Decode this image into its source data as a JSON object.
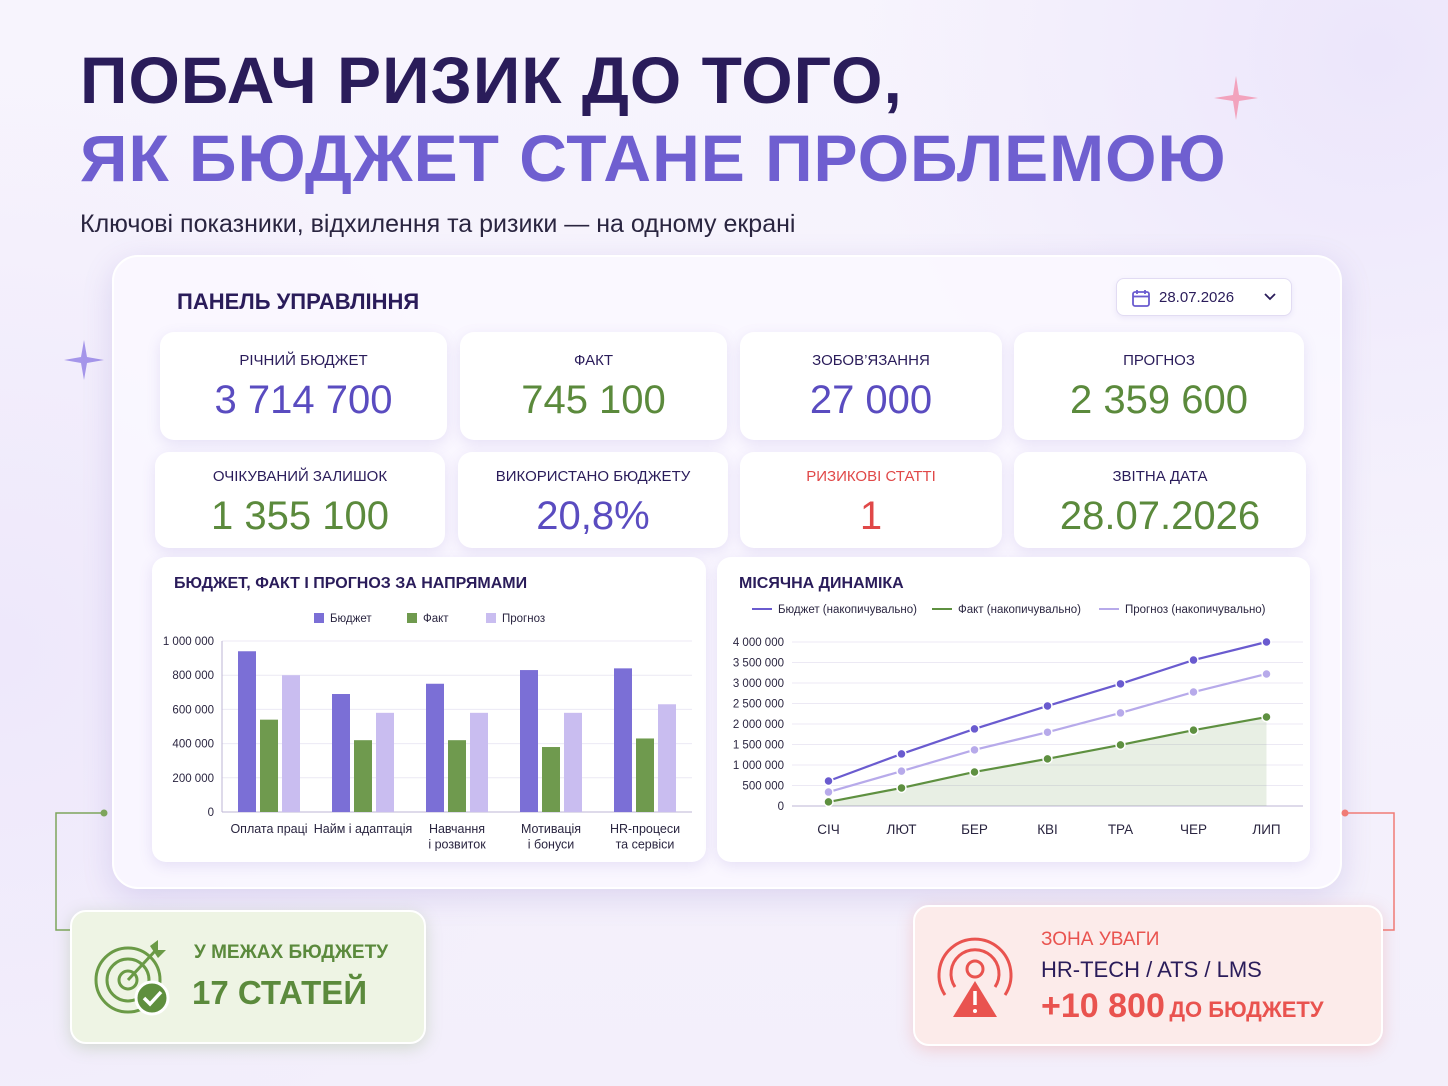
{
  "header": {
    "title_line1": "ПОБАЧ РИЗИК ДО ТОГО,",
    "title_line2": "ЯК БЮДЖЕТ СТАНЕ ПРОБЛЕМОЮ",
    "subtitle": "Ключові показники, відхилення та ризики — на одному екрані"
  },
  "panel": {
    "title": "ПАНЕЛЬ УПРАВЛІННЯ",
    "date": "28.07.2026"
  },
  "kpis": [
    {
      "label": "РІЧНИЙ БЮДЖЕТ",
      "value": "3 714 700",
      "color": "#5a4cc0"
    },
    {
      "label": "ФАКТ",
      "value": "745 100",
      "color": "#5b8a3c"
    },
    {
      "label": "ЗОБОВ’ЯЗАННЯ",
      "value": "27 000",
      "color": "#5a4cc0"
    },
    {
      "label": "ПРОГНОЗ",
      "value": "2 359 600",
      "color": "#5b8a3c"
    },
    {
      "label": "ОЧІКУВАНИЙ ЗАЛИШОК",
      "value": "1 355 100",
      "color": "#5b8a3c"
    },
    {
      "label": "ВИКОРИСТАНО БЮДЖЕТУ",
      "value": "20,8%",
      "color": "#5a4cc0"
    },
    {
      "label": "РИЗИКОВІ СТАТТІ",
      "value": "1",
      "color": "#e04848"
    },
    {
      "label": "ЗВІТНА ДАТА",
      "value": "28.07.2026",
      "color": "#5b8a3c"
    }
  ],
  "chart_data": [
    {
      "type": "bar",
      "title": "БЮДЖЕТ, ФАКТ І ПРОГНОЗ ЗА НАПРЯМАМИ",
      "categories": [
        "Оплата праці",
        "Найм і адаптація",
        "Навчання\nі розвиток",
        "Мотивація\nі бонуси",
        "HR-процеси\nта сервіси"
      ],
      "series": [
        {
          "name": "Бюджет",
          "color": "#7b6fd6",
          "values": [
            940000,
            690000,
            750000,
            830000,
            840000
          ]
        },
        {
          "name": "Факт",
          "color": "#6f9a4e",
          "values": [
            540000,
            420000,
            420000,
            380000,
            430000
          ]
        },
        {
          "name": "Прогноз",
          "color": "#c9bdf0",
          "values": [
            800000,
            580000,
            580000,
            580000,
            630000
          ]
        }
      ],
      "ylim": [
        0,
        1000000
      ],
      "yticks": [
        0,
        {
          "value": 200000,
          "label": "200 000"
        },
        {
          "value": 400000,
          "label": "400 000"
        },
        {
          "value": 600000,
          "label": "600 000"
        },
        {
          "value": 800000,
          "label": "800 000"
        },
        {
          "value": 1000000,
          "label": "1 000 000"
        }
      ],
      "grid": true
    },
    {
      "type": "line",
      "title": "МІСЯЧНА ДИНАМІКА",
      "categories": [
        "СІЧ",
        "ЛЮТ",
        "БЕР",
        "КВІ",
        "ТРА",
        "ЧЕР",
        "ЛИП"
      ],
      "series": [
        {
          "name": "Бюджет (накопичувально)",
          "color": "#6a5bcf",
          "values": [
            610000,
            1270000,
            1880000,
            2440000,
            2980000,
            3560000,
            4000000
          ]
        },
        {
          "name": "Факт (накопичувально)",
          "color": "#5e9040",
          "values": [
            100000,
            440000,
            830000,
            1150000,
            1490000,
            1850000,
            2170000
          ],
          "area": true
        },
        {
          "name": "Прогноз (накопичувально)",
          "color": "#b7aaea",
          "values": [
            340000,
            850000,
            1370000,
            1800000,
            2270000,
            2780000,
            3220000
          ]
        }
      ],
      "ylim": [
        0,
        4000000
      ],
      "yticks": [
        0,
        {
          "value": 500000,
          "label": "500 000"
        },
        {
          "value": 1000000,
          "label": "1 000 000"
        },
        {
          "value": 1500000,
          "label": "1 500 000"
        },
        {
          "value": 2000000,
          "label": "2 000 000"
        },
        {
          "value": 2500000,
          "label": "2 500 000"
        },
        {
          "value": 3000000,
          "label": "3 000 000"
        },
        {
          "value": 3500000,
          "label": "3 500 000"
        },
        {
          "value": 4000000,
          "label": "4 000 000"
        }
      ],
      "grid": true
    }
  ],
  "callouts": {
    "ok": {
      "label": "У МЕЖАХ БЮДЖЕТУ",
      "value": "17 СТАТЕЙ"
    },
    "risk": {
      "label": "ЗОНА УВАГИ",
      "item": "HR-TECH / ATS / LMS",
      "amount": "+10 800",
      "suffix": "ДО БЮДЖЕТУ"
    }
  }
}
